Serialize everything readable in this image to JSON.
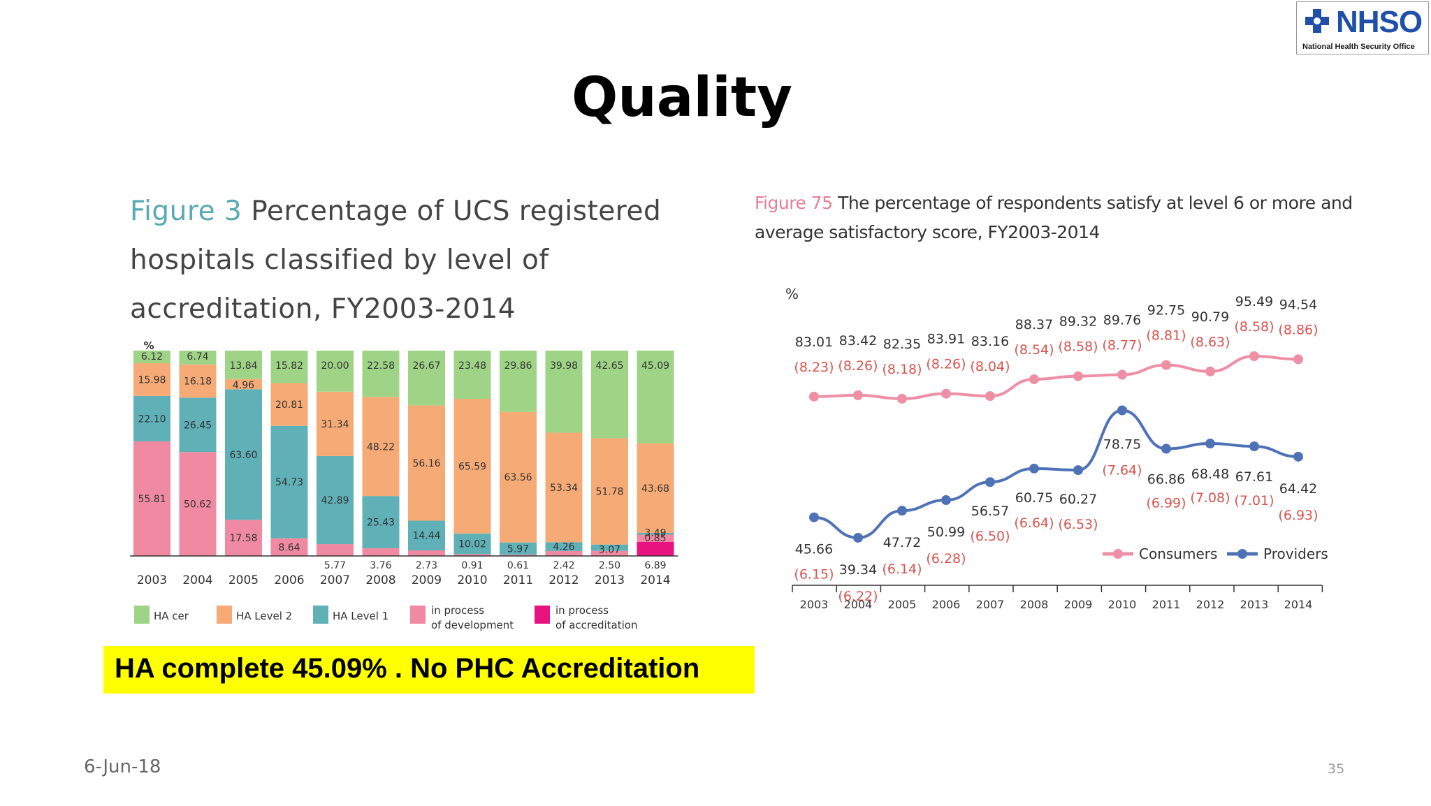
{
  "slide": {
    "title": "Quality",
    "highlight": "HA complete 45.09% . No PHC Accreditation",
    "date": "6-Jun-18",
    "page_number": "35",
    "logo": {
      "name": "NHSO",
      "subtitle": "National Health Security Office",
      "icon": "nhso-cross-icon",
      "color": "#1f4fa8"
    }
  },
  "figure3": {
    "label": "Figure 3",
    "title": "Percentage of UCS registered hospitals classified by level of accreditation, FY2003-2014"
  },
  "figure75": {
    "label": "Figure 75",
    "title": "The percentage of respondents satisfy at level 6 or more and average satisfactory score, FY2003-2014"
  },
  "chart_data": [
    {
      "type": "bar",
      "stacked": true,
      "unit_label": "%",
      "categories": [
        "2003",
        "2004",
        "2005",
        "2006",
        "2007",
        "2008",
        "2009",
        "2010",
        "2011",
        "2012",
        "2013",
        "2014"
      ],
      "series": [
        {
          "name": "in process of accreditation",
          "color": "#e8137f",
          "values": [
            0,
            0,
            0,
            0,
            0,
            0,
            0,
            0,
            0,
            0,
            0,
            6.89
          ],
          "labels": [
            "",
            "",
            "",
            "",
            "",
            "",
            "",
            "",
            "",
            "",
            "",
            "6.89"
          ]
        },
        {
          "name": "in process of development",
          "color": "#f08aa3",
          "values": [
            55.81,
            50.62,
            17.58,
            8.64,
            5.77,
            3.76,
            2.73,
            0.91,
            0.61,
            2.42,
            2.5,
            3.49
          ],
          "labels": [
            "55.81",
            "50.62",
            "17.58",
            "8.64",
            "5.77",
            "3.76",
            "2.73",
            "0.91",
            "0.61",
            "2.42",
            "2.50",
            "3.49"
          ]
        },
        {
          "name": "HA Level 1",
          "color": "#5fb0b7",
          "values": [
            22.1,
            26.45,
            63.6,
            54.73,
            42.89,
            25.43,
            14.44,
            10.02,
            5.97,
            4.26,
            3.07,
            0.85
          ],
          "labels": [
            "22.10",
            "26.45",
            "63.60",
            "54.73",
            "42.89",
            "25.43",
            "14.44",
            "10.02",
            "5.97",
            "4.26",
            "3.07",
            "0.85"
          ]
        },
        {
          "name": "HA Level 2",
          "color": "#f6ab76",
          "values": [
            15.98,
            16.18,
            4.96,
            20.81,
            31.34,
            48.22,
            56.16,
            65.59,
            63.56,
            53.34,
            51.78,
            43.68
          ],
          "labels": [
            "15.98",
            "16.18",
            "4.96",
            "20.81",
            "31.34",
            "48.22",
            "56.16",
            "65.59",
            "63.56",
            "53.34",
            "51.78",
            "43.68"
          ]
        },
        {
          "name": "HA cer",
          "color": "#9fd487",
          "values": [
            6.12,
            6.74,
            13.84,
            15.82,
            20.0,
            22.58,
            26.67,
            23.48,
            29.86,
            39.98,
            42.65,
            45.09
          ],
          "labels": [
            "6.12",
            "6.74",
            "13.84",
            "15.82",
            "20.00",
            "22.58",
            "26.67",
            "23.48",
            "29.86",
            "39.98",
            "42.65",
            "45.09"
          ]
        }
      ],
      "legend": [
        {
          "name": "HA cer",
          "color": "#9fd487"
        },
        {
          "name": "HA Level 2",
          "color": "#f6ab76"
        },
        {
          "name": "HA Level 1",
          "color": "#5fb0b7"
        },
        {
          "name": "in process",
          "name2": "of development",
          "color": "#f08aa3"
        },
        {
          "name": "in process",
          "name2": "of accreditation",
          "color": "#e8137f"
        }
      ],
      "legend_placement": "bottom",
      "ylim": [
        0,
        100
      ]
    },
    {
      "type": "line",
      "unit_label": "%",
      "x": [
        "2003",
        "2004",
        "2005",
        "2006",
        "2007",
        "2008",
        "2009",
        "2010",
        "2011",
        "2012",
        "2013",
        "2014"
      ],
      "series": [
        {
          "name": "Consumers",
          "color": "#ee8fa6",
          "values": [
            83.01,
            83.42,
            82.35,
            83.91,
            83.16,
            88.37,
            89.32,
            89.76,
            92.75,
            90.79,
            95.49,
            94.54
          ],
          "labels": [
            "83.01",
            "83.42",
            "82.35",
            "83.91",
            "83.16",
            "88.37",
            "89.32",
            "89.76",
            "92.75",
            "90.79",
            "95.49",
            "94.54"
          ],
          "scores": [
            "(8.23)",
            "(8.26)",
            "(8.18)",
            "(8.26)",
            "(8.04)",
            "(8.54)",
            "(8.58)",
            "(8.77)",
            "(8.81)",
            "(8.63)",
            "(8.58)",
            "(8.86)"
          ]
        },
        {
          "name": "Providers",
          "color": "#4f72b6",
          "values": [
            45.66,
            39.34,
            47.72,
            50.99,
            56.57,
            60.75,
            60.27,
            78.75,
            66.86,
            68.48,
            67.61,
            64.42
          ],
          "labels": [
            "45.66",
            "39.34",
            "47.72",
            "50.99",
            "56.57",
            "60.75",
            "60.27",
            "78.75",
            "66.86",
            "68.48",
            "67.61",
            "64.42"
          ],
          "scores": [
            "(6.15)",
            "(6.22)",
            "(6.14)",
            "(6.28)",
            "(6.50)",
            "(6.64)",
            "(6.53)",
            "(7.64)",
            "(6.99)",
            "(7.08)",
            "(7.01)",
            "(6.93)"
          ]
        }
      ],
      "legend_placement": "bottom-right",
      "grid": false
    }
  ]
}
